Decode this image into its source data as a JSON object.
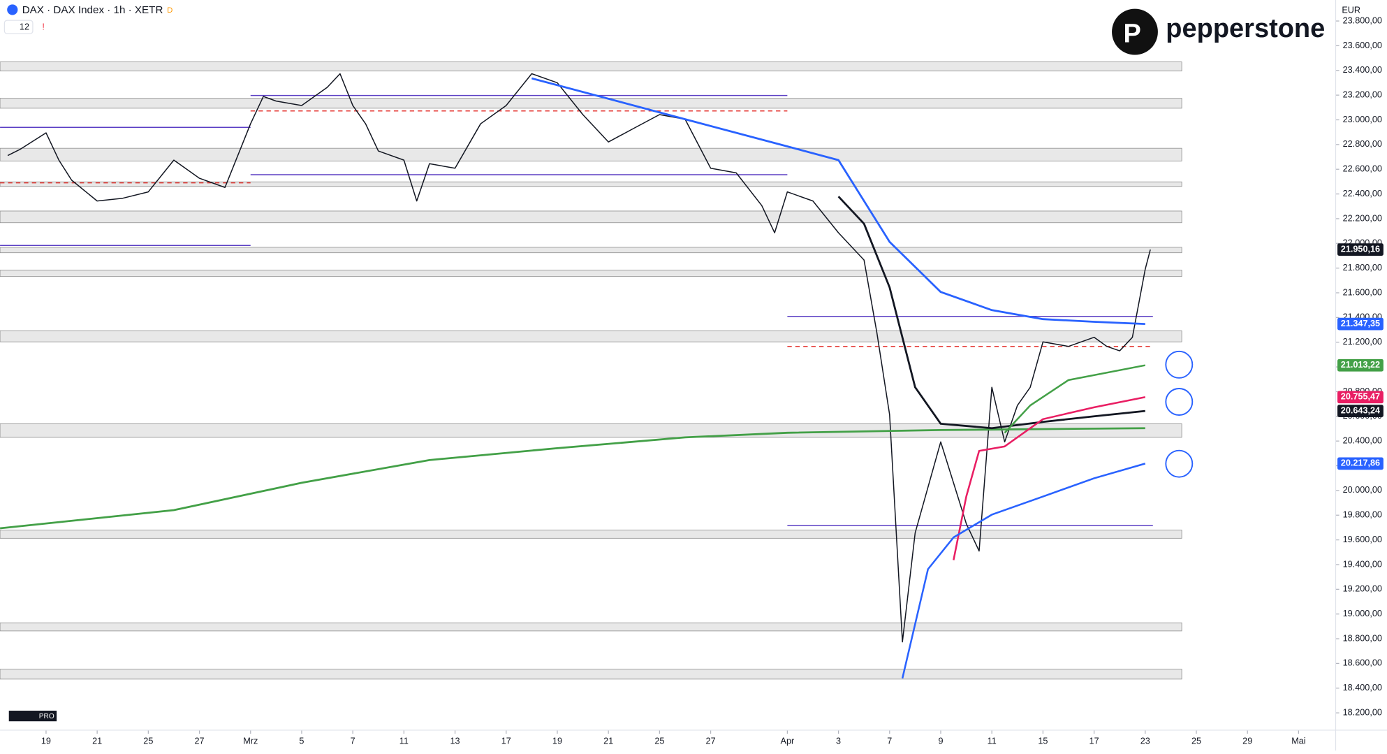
{
  "header": {
    "symbol": "DAX · DAX Index · 1h · XETR",
    "badge": "D",
    "indicators": "12",
    "currency": "EUR",
    "brand": "pepperstone",
    "tv": "PRO"
  },
  "chart_data": {
    "type": "line",
    "xlim": [
      -1.8,
      50.45
    ],
    "ylim": [
      18060,
      23970
    ],
    "xticks": [
      {
        "value": 0,
        "label": "19"
      },
      {
        "value": 2,
        "label": "21"
      },
      {
        "value": 4,
        "label": "25"
      },
      {
        "value": 6,
        "label": "27"
      },
      {
        "value": 8,
        "label": "Mrz"
      },
      {
        "value": 10,
        "label": "5"
      },
      {
        "value": 12,
        "label": "7"
      },
      {
        "value": 14,
        "label": "11"
      },
      {
        "value": 16,
        "label": "13"
      },
      {
        "value": 18,
        "label": "17"
      },
      {
        "value": 20,
        "label": "19"
      },
      {
        "value": 22,
        "label": "21"
      },
      {
        "value": 24,
        "label": "25"
      },
      {
        "value": 26,
        "label": "27"
      },
      {
        "value": 29,
        "label": "Apr"
      },
      {
        "value": 31,
        "label": "3"
      },
      {
        "value": 33,
        "label": "7"
      },
      {
        "value": 35,
        "label": "9"
      },
      {
        "value": 37,
        "label": "11"
      },
      {
        "value": 39,
        "label": "15"
      },
      {
        "value": 41,
        "label": "17"
      },
      {
        "value": 43,
        "label": "23"
      },
      {
        "value": 45,
        "label": "25"
      },
      {
        "value": 47,
        "label": "29"
      },
      {
        "value": 49,
        "label": "Mai"
      }
    ],
    "yticks": [
      {
        "value": 18200,
        "label": "18.200,00"
      },
      {
        "value": 18400,
        "label": "18.400,00"
      },
      {
        "value": 18600,
        "label": "18.600,00"
      },
      {
        "value": 18800,
        "label": "18.800,00"
      },
      {
        "value": 19000,
        "label": "19.000,00"
      },
      {
        "value": 19200,
        "label": "19.200,00"
      },
      {
        "value": 19400,
        "label": "19.400,00"
      },
      {
        "value": 19600,
        "label": "19.600,00"
      },
      {
        "value": 19800,
        "label": "19.800,00"
      },
      {
        "value": 20000,
        "label": "20.000,00"
      },
      {
        "value": 20200,
        "label": "20.200,00"
      },
      {
        "value": 20400,
        "label": "20.400,00"
      },
      {
        "value": 20600,
        "label": "20.600,00"
      },
      {
        "value": 20800,
        "label": "20.800,00"
      },
      {
        "value": 21000,
        "label": "21.000,00"
      },
      {
        "value": 21200,
        "label": "21.200,00"
      },
      {
        "value": 21400,
        "label": "21.400,00"
      },
      {
        "value": 21600,
        "label": "21.600,00"
      },
      {
        "value": 21800,
        "label": "21.800,00"
      },
      {
        "value": 22000,
        "label": "22.000,00"
      },
      {
        "value": 22200,
        "label": "22.200,00"
      },
      {
        "value": 22400,
        "label": "22.400,00"
      },
      {
        "value": 22600,
        "label": "22.600,00"
      },
      {
        "value": 22800,
        "label": "22.800,00"
      },
      {
        "value": 23000,
        "label": "23.000,00"
      },
      {
        "value": 23200,
        "label": "23.200,00"
      },
      {
        "value": 23400,
        "label": "23.400,00"
      },
      {
        "value": 23600,
        "label": "23.600,00"
      },
      {
        "value": 23800,
        "label": "23.800,00"
      }
    ],
    "zones": [
      [
        23469,
        23395
      ],
      [
        23175,
        23094
      ],
      [
        22770,
        22667
      ],
      [
        22498,
        22461
      ],
      [
        22262,
        22167
      ],
      [
        21968,
        21924
      ],
      [
        21784,
        21732
      ],
      [
        21293,
        21203
      ],
      [
        20540,
        20430
      ],
      [
        19680,
        19613
      ],
      [
        18929,
        18863
      ],
      [
        18554,
        18473
      ]
    ],
    "levels": [
      {
        "value": 22939,
        "from": -1.8,
        "to": 8,
        "color": "#5b3fc4"
      },
      {
        "value": 21983,
        "from": -1.8,
        "to": 8,
        "color": "#5b3fc4"
      },
      {
        "value": 22490,
        "from": -1.8,
        "to": 8,
        "color": "#e53935",
        "dashed": true
      },
      {
        "value": 23197,
        "from": 8,
        "to": 29,
        "color": "#5b3fc4"
      },
      {
        "value": 22556,
        "from": 8,
        "to": 29,
        "color": "#5b3fc4"
      },
      {
        "value": 23072,
        "from": 8,
        "to": 29,
        "color": "#e53935",
        "dashed": true
      },
      {
        "value": 21409,
        "from": 29,
        "to": 43.3,
        "color": "#5b3fc4"
      },
      {
        "value": 19716,
        "from": 29,
        "to": 43.3,
        "color": "#5b3fc4"
      },
      {
        "value": 21166,
        "from": 29,
        "to": 43.3,
        "color": "#e53935",
        "dashed": true
      }
    ],
    "series": [
      {
        "color": "#131722",
        "width": 1.2,
        "last_label": "21.950,16",
        "x": [
          -1.5,
          -1,
          0,
          0.5,
          1,
          2,
          3,
          4,
          5,
          6,
          7,
          8,
          8.5,
          9,
          10,
          11,
          11.5,
          12,
          12.5,
          13,
          14,
          14.5,
          15,
          16,
          17,
          18,
          19,
          20,
          21,
          22,
          23,
          24,
          25,
          26,
          27,
          28,
          28.5,
          29,
          30,
          31,
          32,
          32.5,
          33,
          33.5,
          34,
          35,
          36,
          36.5,
          37,
          37.5,
          38,
          38.5,
          39,
          40,
          41,
          41.5,
          42,
          42.5,
          43,
          43.2
        ],
        "values": [
          22711,
          22763,
          22895,
          22674,
          22512,
          22343,
          22365,
          22417,
          22674,
          22527,
          22453,
          22968,
          23189,
          23152,
          23116,
          23263,
          23373,
          23116,
          22968,
          22748,
          22674,
          22343,
          22645,
          22608,
          22968,
          23116,
          23373,
          23300,
          23042,
          22821,
          22932,
          23042,
          23005,
          22608,
          22571,
          22306,
          22086,
          22417,
          22343,
          22086,
          21865,
          21278,
          20614,
          18774,
          19657,
          20393,
          19731,
          19510,
          20835,
          20393,
          20688,
          20835,
          21203,
          21166,
          21240,
          21166,
          21130,
          21240,
          21791,
          21950.16
        ]
      },
      {
        "color": "#2962ff",
        "width": 2.2,
        "last_label": "21.347,35",
        "x": [
          19,
          25,
          29,
          31,
          33,
          35,
          37,
          39,
          41,
          43
        ],
        "values": [
          23336,
          23005,
          22785,
          22674,
          22012,
          21607,
          21460,
          21387,
          21365,
          21347.35
        ]
      },
      {
        "color": "#43a047",
        "width": 2.2,
        "x": [
          -1.8,
          5,
          10,
          15,
          20,
          25,
          29,
          35,
          43
        ],
        "values": [
          19694,
          19841,
          20062,
          20246,
          20342,
          20430,
          20467,
          20489,
          20504
        ]
      },
      {
        "color": "#131722",
        "width": 2.2,
        "last_label": "20.643,24",
        "x": [
          31,
          32,
          33,
          34,
          35,
          37,
          39,
          41,
          43
        ],
        "values": [
          22380,
          22159,
          21644,
          20835,
          20540,
          20504,
          20555,
          20600,
          20643.24
        ]
      },
      {
        "color": "#e91e63",
        "width": 2,
        "last_label": "20.755,47",
        "x": [
          35.5,
          36,
          36.5,
          37.5,
          39,
          41,
          43
        ],
        "values": [
          19437,
          19951,
          20320,
          20357,
          20577,
          20673,
          20755.47
        ]
      },
      {
        "color": "#43a047",
        "width": 2,
        "last_label": "21.013,22",
        "x": [
          37.5,
          38.5,
          40,
          43
        ],
        "values": [
          20467,
          20688,
          20894,
          21013.22
        ]
      },
      {
        "color": "#2962ff",
        "width": 2,
        "last_label": "20.217,86",
        "x": [
          33.5,
          34.5,
          35.5,
          37,
          39,
          41,
          43
        ],
        "values": [
          18480,
          19363,
          19620,
          19804,
          19951,
          20099,
          20217.86
        ]
      }
    ]
  }
}
